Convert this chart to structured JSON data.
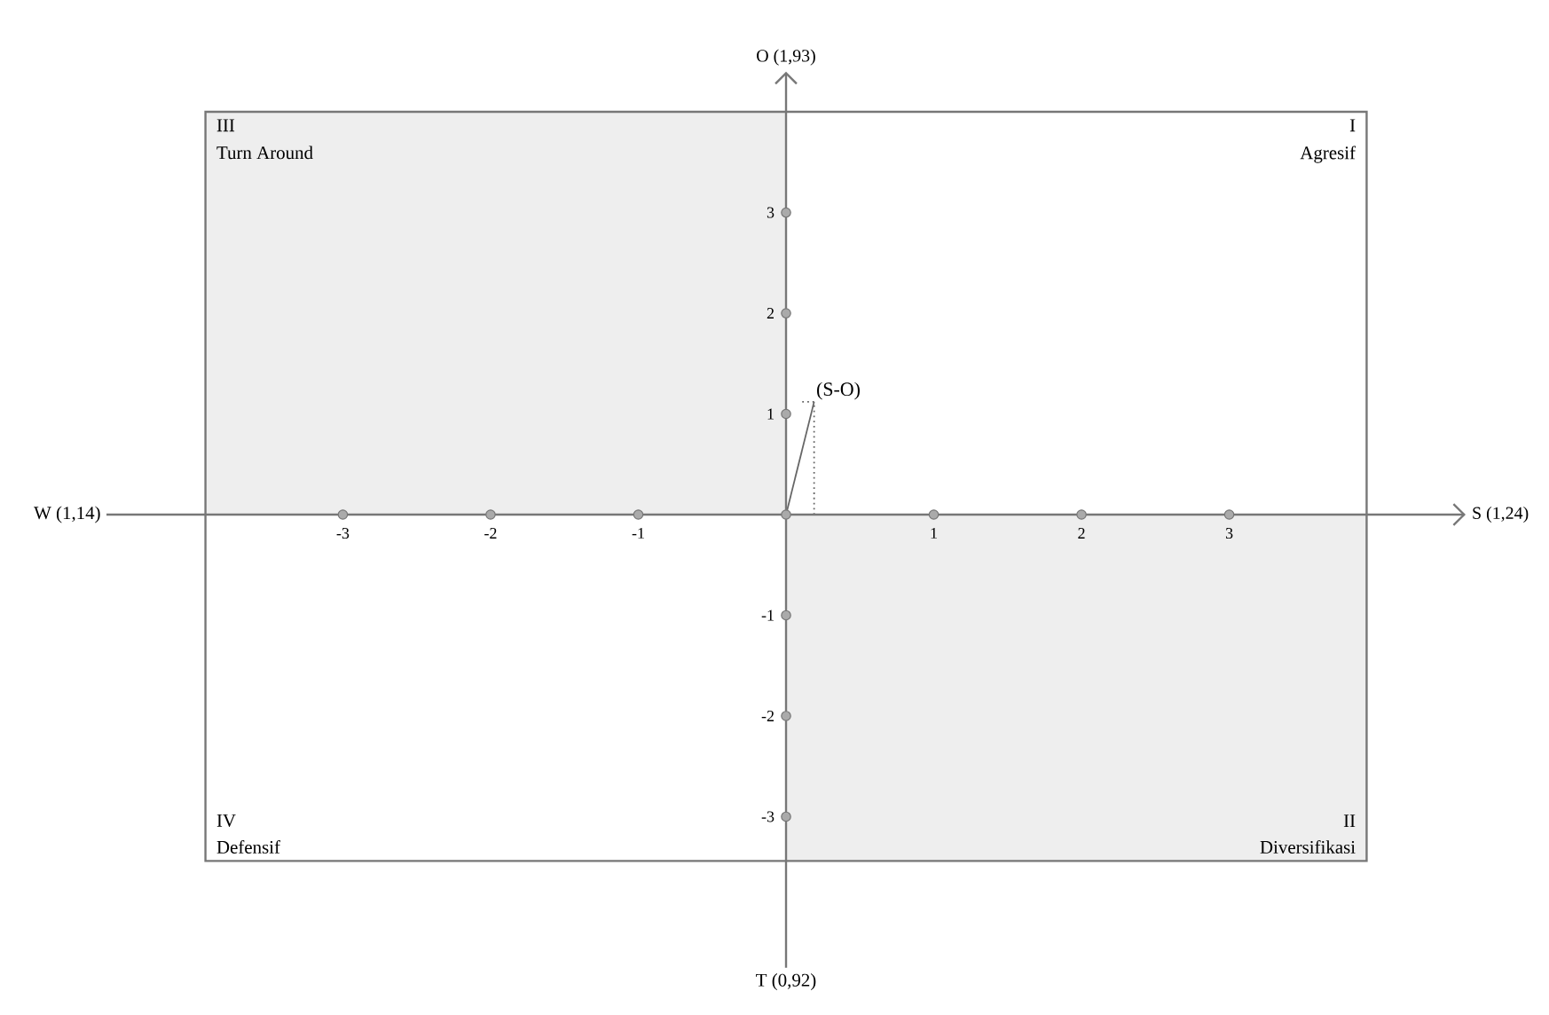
{
  "chart_data": {
    "type": "line",
    "xlabel": "S (1,24)",
    "ylabel": "O (1,93)",
    "xlim": [
      -4.6,
      4.6
    ],
    "ylim": [
      -4.5,
      4.4
    ],
    "xticks": [
      -3,
      -2,
      -1,
      1,
      2,
      3
    ],
    "yticks": [
      -3,
      -2,
      -1,
      1,
      2,
      3
    ],
    "grid": false,
    "series": [
      {
        "type": "area",
        "color": "#eeeeee",
        "x": [
          -3.93,
          0
        ],
        "values": [
          4.0,
          4.0
        ]
      },
      {
        "type": "area",
        "color": "#eeeeee",
        "x": [
          0,
          3.93
        ],
        "values": [
          -3.44,
          -3.44
        ]
      },
      {
        "color": "#666666",
        "x": [
          0,
          0.19
        ],
        "values": [
          0,
          1.12
        ]
      },
      {
        "type": "scatter",
        "color": "#aaaaaa",
        "marker": "circle",
        "x": [
          -3,
          -2,
          -1,
          0,
          1,
          2,
          3,
          0,
          0,
          0,
          0,
          0,
          0
        ],
        "values": [
          0,
          0,
          0,
          0,
          0,
          0,
          0,
          -3,
          -2,
          -1,
          1,
          2,
          3
        ]
      },
      {
        "type": "line",
        "color": "#666666",
        "line_style": "dotted",
        "x": [
          0.19,
          0.19,
          0.1
        ],
        "values": [
          0,
          1.12,
          1.12
        ]
      }
    ],
    "annotations": [
      "III",
      "Turn Around",
      "I",
      "Agresif",
      "IV",
      "Defensif",
      "II",
      "Diversifikasi",
      "W (1,14)",
      "T (0,92)",
      {
        "text": "(S-O)",
        "x": 0.19,
        "y": 1.12
      }
    ]
  }
}
